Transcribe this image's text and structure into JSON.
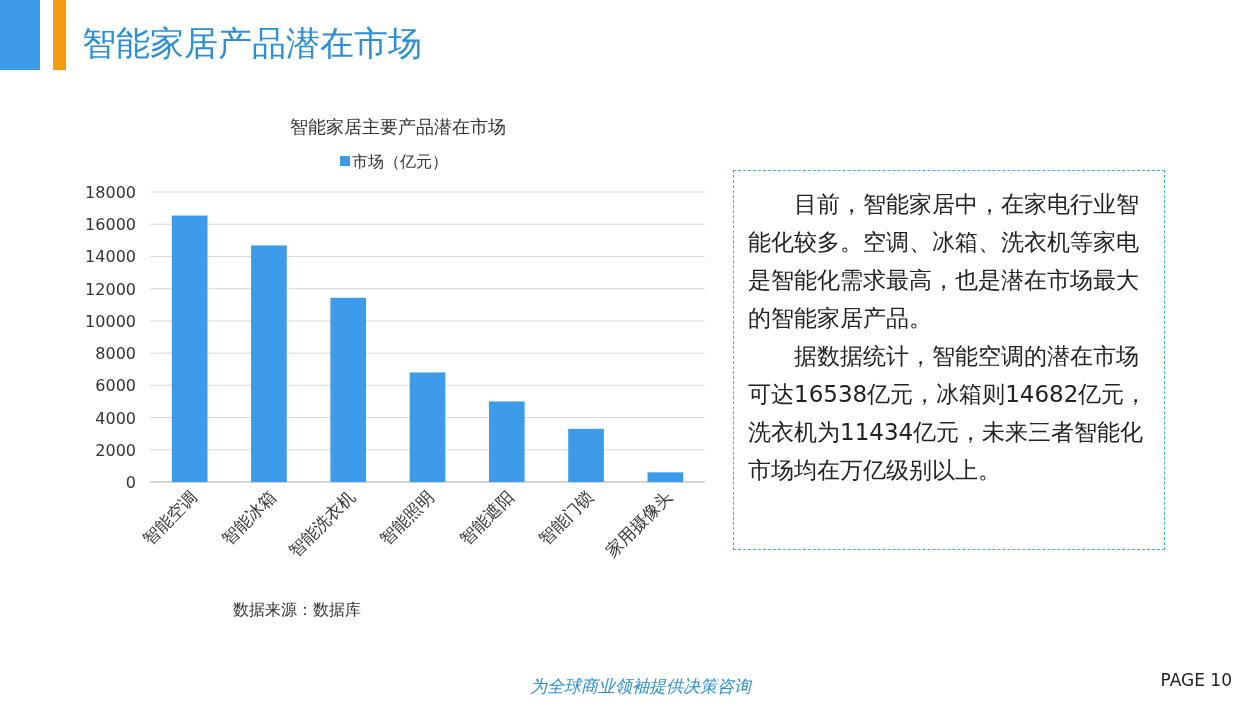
{
  "chart_data": {
    "type": "bar",
    "title": "智能家居产品潜在市场",
    "subtitle": "智能家居主要产品潜在市场",
    "categories": [
      "智能空调",
      "智能冰箱",
      "智能洗衣机",
      "智能照明",
      "智能遮阳",
      "智能门锁",
      "家用摄像头"
    ],
    "series": [
      {
        "name": "市场（亿元）",
        "color": "#3d9be9",
        "values": [
          16538,
          14682,
          11434,
          6800,
          5000,
          3300,
          600
        ]
      }
    ],
    "ylim": [
      0,
      18000
    ],
    "yticks": [
      0,
      2000,
      4000,
      6000,
      8000,
      10000,
      12000,
      14000,
      16000,
      18000
    ],
    "grid": "y",
    "legend": "top",
    "annotations": [
      "目前，智能家居中，在家电行业智能化较多。空调、冰箱、洗衣机等家电是智能化需求最高，也是潜在市场最大的智能家居产品。",
      "据数据统计，智能空调的潜在市场可达16538亿元，冰箱则14682亿元，洗衣机为11434亿元，未来三者智能化市场均在万亿级别以上。",
      "数据来源：数据库",
      "为全球商业领袖提供决策咨询",
      "PAGE  10"
    ]
  }
}
